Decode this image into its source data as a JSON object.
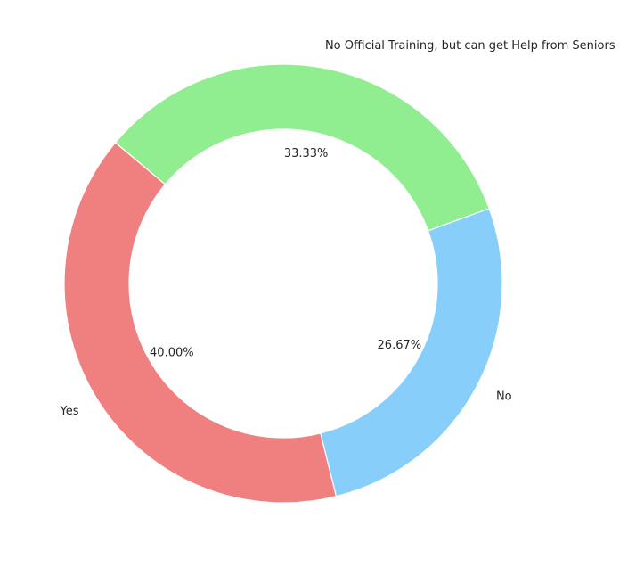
{
  "chart_data": {
    "type": "pie",
    "donut": true,
    "categories": [
      "Yes",
      "No",
      "No Official Training, but can get Help from Seniors"
    ],
    "values": [
      40.0,
      26.67,
      33.33
    ],
    "pct_labels": [
      "40.00%",
      "26.67%",
      "33.33%"
    ],
    "colors": [
      "#f08080",
      "#87cefa",
      "#90ee90"
    ],
    "start_angle_deg": 140,
    "direction": "counterclockwise",
    "title": "",
    "legend": "none"
  }
}
